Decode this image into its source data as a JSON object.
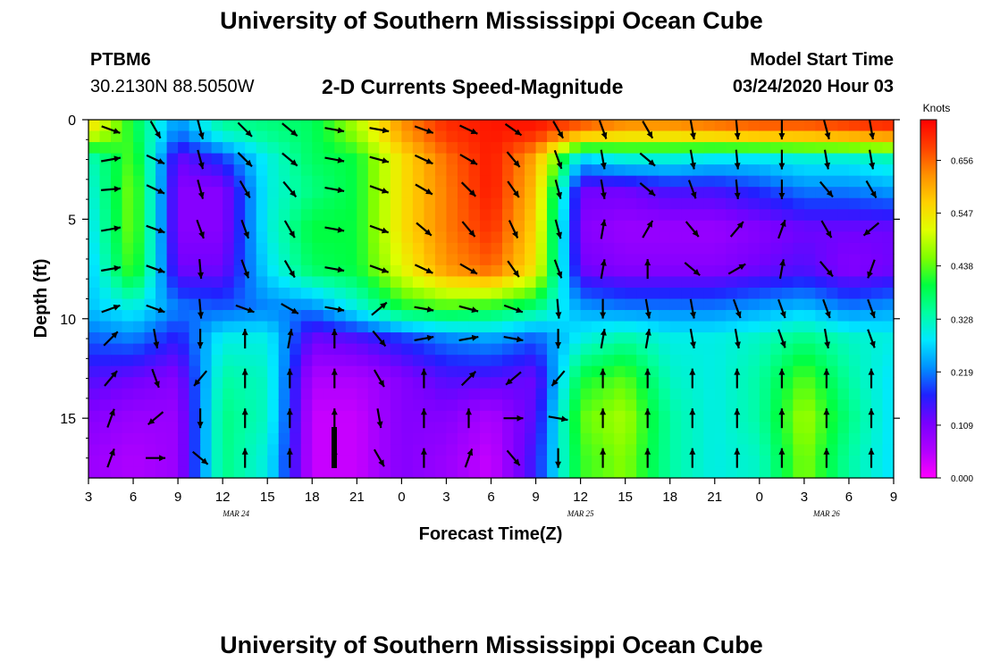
{
  "header": {
    "title_top": "University of Southern Mississippi Ocean Cube",
    "station_id": "PTBM6",
    "station_coords": "30.2130N 88.5050W",
    "product_name": "2-D Currents Speed-Magnitude",
    "model_label": "Model Start Time",
    "model_time": "03/24/2020 Hour 03"
  },
  "footer": {
    "title_bottom": "University of Southern Mississippi Ocean Cube"
  },
  "colors": {
    "palette": [
      "#ff00ff",
      "#b000ff",
      "#7800ff",
      "#2020ff",
      "#0090ff",
      "#00e8ff",
      "#00ffa0",
      "#00ff40",
      "#80ff00",
      "#e0ff00",
      "#ffd000",
      "#ff9000",
      "#ff4000",
      "#ff0000"
    ],
    "arrow": "#000000"
  },
  "chart_data": {
    "type": "heatmap",
    "xlabel": "Forecast Time(Z)",
    "ylabel": "Depth (ft)",
    "x_ticks": [
      "3",
      "6",
      "9",
      "12",
      "15",
      "18",
      "21",
      "0",
      "3",
      "6",
      "9",
      "12",
      "15",
      "18",
      "21",
      "0",
      "3",
      "6",
      "9"
    ],
    "date_labels": [
      {
        "label": "MAR 24",
        "at_tick": 3.3
      },
      {
        "label": "MAR 25",
        "at_tick": 11.0
      },
      {
        "label": "MAR 26",
        "at_tick": 16.5
      }
    ],
    "y_ticks": [
      0,
      5,
      10,
      15
    ],
    "ylim": [
      18,
      0
    ],
    "colorbar": {
      "title": "Knots",
      "ticks": [
        "0.000",
        "0.109",
        "0.219",
        "0.328",
        "0.438",
        "0.547",
        "0.656"
      ],
      "range": [
        0,
        0.74
      ]
    },
    "time_hours_per_column": 3,
    "depth_rows_ft": [
      0.5,
      2,
      3.5,
      5.5,
      7.5,
      9.5,
      11,
      13,
      15,
      17
    ],
    "speed_knots": [
      [
        0.55,
        0.4,
        0.22,
        0.34,
        0.36,
        0.38,
        0.48,
        0.62,
        0.7,
        0.72,
        0.72,
        0.66,
        0.62,
        0.62,
        0.64,
        0.66,
        0.66,
        0.68,
        0.7
      ],
      [
        0.32,
        0.44,
        0.12,
        0.18,
        0.3,
        0.38,
        0.4,
        0.55,
        0.65,
        0.72,
        0.6,
        0.26,
        0.3,
        0.3,
        0.28,
        0.28,
        0.3,
        0.3,
        0.32
      ],
      [
        0.3,
        0.46,
        0.1,
        0.1,
        0.3,
        0.36,
        0.4,
        0.55,
        0.64,
        0.72,
        0.58,
        0.12,
        0.12,
        0.15,
        0.15,
        0.18,
        0.22,
        0.22,
        0.24
      ],
      [
        0.28,
        0.46,
        0.1,
        0.1,
        0.3,
        0.4,
        0.4,
        0.55,
        0.64,
        0.7,
        0.56,
        0.1,
        0.08,
        0.08,
        0.08,
        0.1,
        0.12,
        0.12,
        0.12
      ],
      [
        0.26,
        0.44,
        0.12,
        0.12,
        0.28,
        0.38,
        0.4,
        0.52,
        0.62,
        0.66,
        0.54,
        0.12,
        0.1,
        0.1,
        0.1,
        0.12,
        0.14,
        0.1,
        0.12
      ],
      [
        0.26,
        0.3,
        0.22,
        0.2,
        0.22,
        0.22,
        0.3,
        0.4,
        0.42,
        0.4,
        0.36,
        0.24,
        0.22,
        0.22,
        0.22,
        0.24,
        0.26,
        0.22,
        0.24
      ],
      [
        0.2,
        0.22,
        0.16,
        0.3,
        0.3,
        0.12,
        0.14,
        0.18,
        0.22,
        0.24,
        0.2,
        0.3,
        0.34,
        0.3,
        0.3,
        0.32,
        0.36,
        0.32,
        0.3
      ],
      [
        0.14,
        0.12,
        0.1,
        0.34,
        0.32,
        0.06,
        0.06,
        0.1,
        0.14,
        0.14,
        0.12,
        0.4,
        0.44,
        0.32,
        0.3,
        0.34,
        0.44,
        0.34,
        0.28
      ],
      [
        0.1,
        0.08,
        0.08,
        0.36,
        0.32,
        0.04,
        0.04,
        0.1,
        0.1,
        0.06,
        0.14,
        0.44,
        0.48,
        0.34,
        0.3,
        0.34,
        0.48,
        0.36,
        0.28
      ],
      [
        0.08,
        0.06,
        0.08,
        0.36,
        0.3,
        0.04,
        0.04,
        0.1,
        0.08,
        0.04,
        0.16,
        0.42,
        0.46,
        0.34,
        0.3,
        0.32,
        0.46,
        0.34,
        0.28
      ]
    ],
    "direction_deg": [
      [
        110,
        150,
        165,
        135,
        130,
        100,
        100,
        110,
        115,
        125,
        150,
        160,
        150,
        170,
        175,
        180,
        165,
        170,
        180
      ],
      [
        80,
        115,
        165,
        135,
        130,
        100,
        105,
        115,
        120,
        140,
        160,
        170,
        130,
        170,
        175,
        180,
        170,
        170,
        180
      ],
      [
        85,
        115,
        165,
        150,
        140,
        100,
        110,
        120,
        135,
        145,
        165,
        170,
        130,
        160,
        175,
        180,
        140,
        150,
        200
      ],
      [
        80,
        110,
        160,
        160,
        150,
        100,
        110,
        130,
        140,
        155,
        165,
        10,
        30,
        140,
        40,
        20,
        150,
        230,
        230
      ],
      [
        80,
        110,
        175,
        160,
        150,
        100,
        110,
        115,
        120,
        145,
        160,
        10,
        0,
        130,
        60,
        10,
        140,
        200,
        260
      ],
      [
        70,
        110,
        175,
        110,
        120,
        100,
        50,
        100,
        105,
        110,
        175,
        180,
        170,
        170,
        160,
        160,
        160,
        160,
        170
      ],
      [
        45,
        170,
        180,
        0,
        10,
        0,
        140,
        80,
        80,
        100,
        180,
        10,
        10,
        170,
        170,
        160,
        170,
        160,
        170
      ],
      [
        40,
        160,
        220,
        0,
        0,
        0,
        150,
        0,
        45,
        230,
        220,
        0,
        0,
        0,
        0,
        0,
        0,
        0,
        170
      ],
      [
        20,
        230,
        180,
        0,
        0,
        0,
        170,
        0,
        0,
        90,
        100,
        0,
        0,
        0,
        0,
        0,
        0,
        0,
        0
      ],
      [
        20,
        90,
        130,
        0,
        0,
        0,
        150,
        0,
        20,
        140,
        180,
        0,
        0,
        0,
        0,
        0,
        0,
        0,
        0
      ]
    ]
  }
}
